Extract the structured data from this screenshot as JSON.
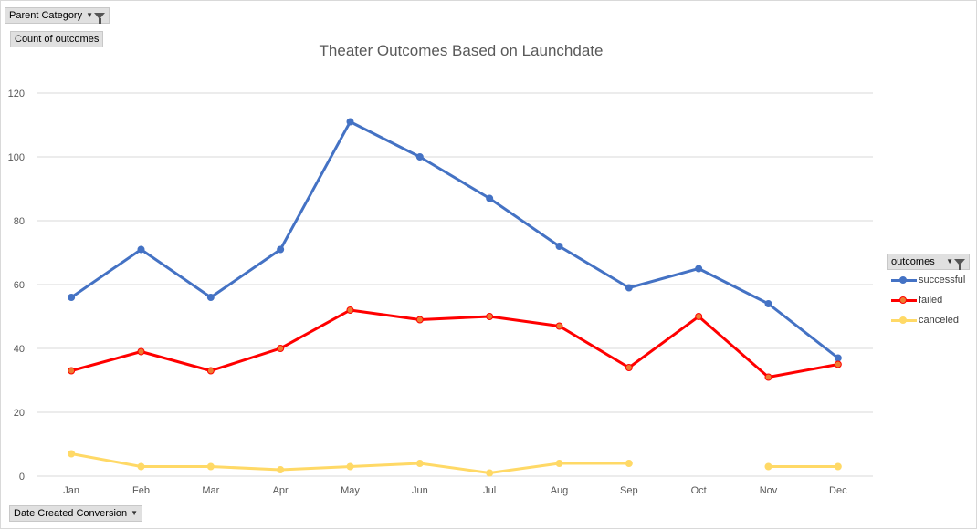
{
  "pivot": {
    "parent_category_label": "Parent Category",
    "count_label": "Count of outcomes",
    "date_label": "Date Created Conversion",
    "outcomes_label": "outcomes"
  },
  "chart_data": {
    "type": "line",
    "title": "Theater Outcomes Based on Launchdate",
    "xlabel": "",
    "ylabel": "",
    "categories": [
      "Jan",
      "Feb",
      "Mar",
      "Apr",
      "May",
      "Jun",
      "Jul",
      "Aug",
      "Sep",
      "Oct",
      "Nov",
      "Dec"
    ],
    "ylim": [
      0,
      120
    ],
    "yticks": [
      0,
      20,
      40,
      60,
      80,
      100,
      120
    ],
    "grid": true,
    "legend_position": "right",
    "series": [
      {
        "name": "successful",
        "color": "#4472c4",
        "values": [
          56,
          71,
          56,
          71,
          111,
          100,
          87,
          72,
          59,
          65,
          54,
          37
        ]
      },
      {
        "name": "failed",
        "color": "#ff0000",
        "marker_color": "#ed7d31",
        "values": [
          33,
          39,
          33,
          40,
          52,
          49,
          50,
          47,
          34,
          50,
          31,
          35
        ]
      },
      {
        "name": "canceled",
        "color": "#ffd966",
        "values": [
          7,
          3,
          3,
          2,
          3,
          4,
          1,
          4,
          4,
          null,
          3,
          3
        ]
      }
    ]
  }
}
